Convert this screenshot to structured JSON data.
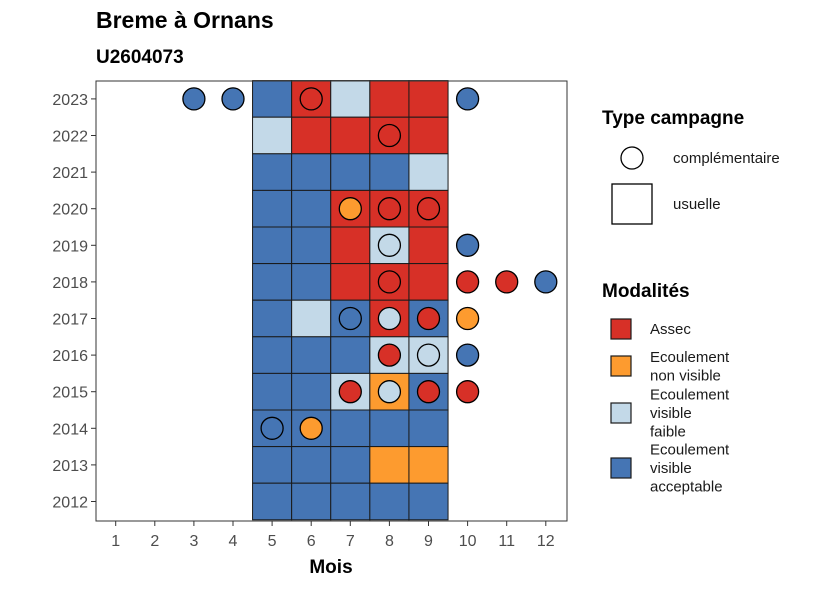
{
  "chart_data": {
    "type": "heatmap",
    "title": "Breme à Ornans",
    "subtitle": "U2604073",
    "xlabel": "Mois",
    "ylabel": "",
    "x_ticks": [
      1,
      2,
      3,
      4,
      5,
      6,
      7,
      8,
      9,
      10,
      11,
      12
    ],
    "y_ticks": [
      2012,
      2013,
      2014,
      2015,
      2016,
      2017,
      2018,
      2019,
      2020,
      2021,
      2022,
      2023
    ],
    "xlim": [
      0.5,
      12.5
    ],
    "ylim": [
      2011.5,
      2023.5
    ],
    "grid": false,
    "legend_position": "right",
    "colors": {
      "Assec": "#d73027",
      "Ecoulement non visible": "#fd9b2f",
      "Ecoulement visible faible": "#c3d9e8",
      "Ecoulement visible acceptable": "#4575b4"
    },
    "legend": {
      "type_title": "Type campagne",
      "type_entries": [
        {
          "key": "complementaire",
          "label": "complémentaire",
          "shape": "circle"
        },
        {
          "key": "usuelle",
          "label": "usuelle",
          "shape": "square"
        }
      ],
      "modalites_title": "Modalités",
      "modalites_entries": [
        {
          "key": "Assec",
          "lines": [
            "Assec"
          ]
        },
        {
          "key": "Ecoulement non visible",
          "lines": [
            "Ecoulement",
            "non visible"
          ]
        },
        {
          "key": "Ecoulement visible faible",
          "lines": [
            "Ecoulement",
            "visible",
            "faible"
          ]
        },
        {
          "key": "Ecoulement visible acceptable",
          "lines": [
            "Ecoulement",
            "visible",
            "acceptable"
          ]
        }
      ]
    },
    "usuelle": [
      {
        "year": 2023,
        "months": [
          "Ecoulement visible acceptable",
          "Assec",
          "Ecoulement visible faible",
          "Assec",
          "Assec"
        ]
      },
      {
        "year": 2022,
        "months": [
          "Ecoulement visible faible",
          "Assec",
          "Assec",
          "Assec",
          "Assec"
        ]
      },
      {
        "year": 2021,
        "months": [
          "Ecoulement visible acceptable",
          "Ecoulement visible acceptable",
          "Ecoulement visible acceptable",
          "Ecoulement visible acceptable",
          "Ecoulement visible faible"
        ]
      },
      {
        "year": 2020,
        "months": [
          "Ecoulement visible acceptable",
          "Ecoulement visible acceptable",
          "Assec",
          "Assec",
          "Assec"
        ]
      },
      {
        "year": 2019,
        "months": [
          "Ecoulement visible acceptable",
          "Ecoulement visible acceptable",
          "Assec",
          "Ecoulement visible faible",
          "Assec"
        ]
      },
      {
        "year": 2018,
        "months": [
          "Ecoulement visible acceptable",
          "Ecoulement visible acceptable",
          "Assec",
          "Assec",
          "Assec"
        ]
      },
      {
        "year": 2017,
        "months": [
          "Ecoulement visible acceptable",
          "Ecoulement visible faible",
          "Ecoulement visible acceptable",
          "Assec",
          "Ecoulement visible acceptable"
        ]
      },
      {
        "year": 2016,
        "months": [
          "Ecoulement visible acceptable",
          "Ecoulement visible acceptable",
          "Ecoulement visible acceptable",
          "Ecoulement visible faible",
          "Ecoulement visible faible"
        ]
      },
      {
        "year": 2015,
        "months": [
          "Ecoulement visible acceptable",
          "Ecoulement visible acceptable",
          "Ecoulement visible faible",
          "Ecoulement non visible",
          "Ecoulement visible acceptable"
        ]
      },
      {
        "year": 2014,
        "months": [
          "Ecoulement visible acceptable",
          "Ecoulement visible acceptable",
          "Ecoulement visible acceptable",
          "Ecoulement visible acceptable",
          "Ecoulement visible acceptable"
        ]
      },
      {
        "year": 2013,
        "months": [
          "Ecoulement visible acceptable",
          "Ecoulement visible acceptable",
          "Ecoulement visible acceptable",
          "Ecoulement non visible",
          "Ecoulement non visible"
        ]
      },
      {
        "year": 2012,
        "months": [
          "Ecoulement visible acceptable",
          "Ecoulement visible acceptable",
          "Ecoulement visible acceptable",
          "Ecoulement visible acceptable",
          "Ecoulement visible acceptable"
        ]
      }
    ],
    "usuelle_months": [
      5,
      6,
      7,
      8,
      9
    ],
    "complementaire": [
      {
        "year": 2023,
        "month": 3,
        "modalite": "Ecoulement visible acceptable"
      },
      {
        "year": 2023,
        "month": 4,
        "modalite": "Ecoulement visible acceptable"
      },
      {
        "year": 2023,
        "month": 6,
        "modalite": "Assec"
      },
      {
        "year": 2023,
        "month": 10,
        "modalite": "Ecoulement visible acceptable"
      },
      {
        "year": 2022,
        "month": 8,
        "modalite": "Assec"
      },
      {
        "year": 2020,
        "month": 7,
        "modalite": "Ecoulement non visible"
      },
      {
        "year": 2020,
        "month": 8,
        "modalite": "Assec"
      },
      {
        "year": 2020,
        "month": 9,
        "modalite": "Assec"
      },
      {
        "year": 2019,
        "month": 8,
        "modalite": "Ecoulement visible faible"
      },
      {
        "year": 2019,
        "month": 10,
        "modalite": "Ecoulement visible acceptable"
      },
      {
        "year": 2018,
        "month": 8,
        "modalite": "Assec"
      },
      {
        "year": 2018,
        "month": 10,
        "modalite": "Assec"
      },
      {
        "year": 2018,
        "month": 11,
        "modalite": "Assec"
      },
      {
        "year": 2018,
        "month": 12,
        "modalite": "Ecoulement visible acceptable"
      },
      {
        "year": 2017,
        "month": 7,
        "modalite": "Ecoulement visible acceptable"
      },
      {
        "year": 2017,
        "month": 8,
        "modalite": "Ecoulement visible faible"
      },
      {
        "year": 2017,
        "month": 9,
        "modalite": "Assec"
      },
      {
        "year": 2017,
        "month": 10,
        "modalite": "Ecoulement non visible"
      },
      {
        "year": 2016,
        "month": 8,
        "modalite": "Assec"
      },
      {
        "year": 2016,
        "month": 9,
        "modalite": "Ecoulement visible faible"
      },
      {
        "year": 2016,
        "month": 10,
        "modalite": "Ecoulement visible acceptable"
      },
      {
        "year": 2015,
        "month": 7,
        "modalite": "Assec"
      },
      {
        "year": 2015,
        "month": 8,
        "modalite": "Ecoulement visible faible"
      },
      {
        "year": 2015,
        "month": 9,
        "modalite": "Assec"
      },
      {
        "year": 2015,
        "month": 10,
        "modalite": "Assec"
      },
      {
        "year": 2014,
        "month": 5,
        "modalite": "Ecoulement visible acceptable"
      },
      {
        "year": 2014,
        "month": 6,
        "modalite": "Ecoulement non visible"
      }
    ]
  }
}
